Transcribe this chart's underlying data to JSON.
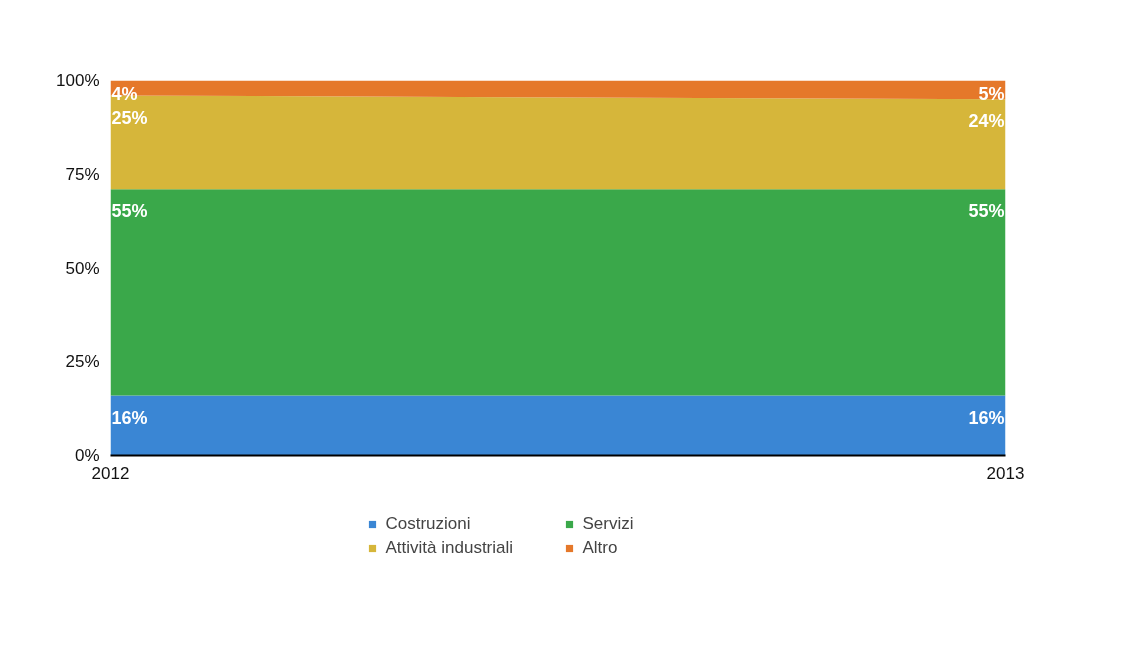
{
  "chart_data": {
    "type": "area",
    "stacked": true,
    "x": [
      2012,
      2013
    ],
    "xlim": [
      2012,
      2013
    ],
    "xticks": [
      2012,
      2013
    ],
    "ylim": [
      0,
      100
    ],
    "yticks": [
      {
        "value": 0,
        "label": "0%"
      },
      {
        "value": 25,
        "label": "25%"
      },
      {
        "value": 50,
        "label": "50%"
      },
      {
        "value": 75,
        "label": "75%"
      },
      {
        "value": 100,
        "label": "100%"
      }
    ],
    "series": [
      {
        "name": "Costruzioni",
        "color": "#3a86d4",
        "values": [
          16,
          16
        ],
        "value_labels": [
          "16%",
          "16%"
        ]
      },
      {
        "name": "Servizi",
        "color": "#3aa84a",
        "values": [
          55,
          55
        ],
        "value_labels": [
          "55%",
          "55%"
        ]
      },
      {
        "name": "Attività industriali",
        "color": "#d6b63a",
        "values": [
          25,
          24
        ],
        "value_labels": [
          "25%",
          "24%"
        ]
      },
      {
        "name": "Altro",
        "color": "#e5782a",
        "values": [
          4,
          5
        ],
        "value_labels": [
          "4%",
          "5%"
        ]
      }
    ],
    "legend": "bottom"
  }
}
